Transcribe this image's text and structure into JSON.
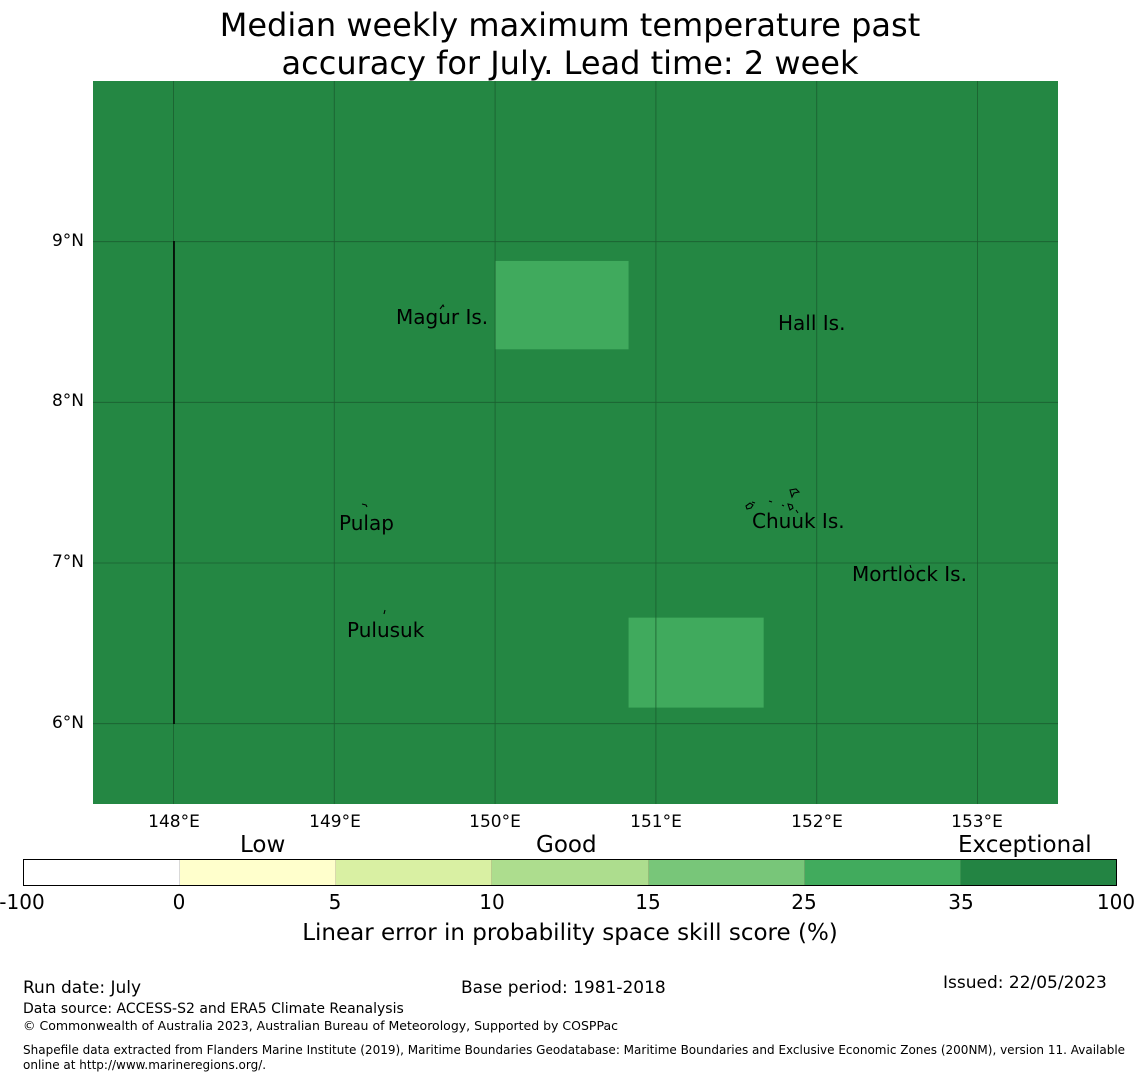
{
  "title": {
    "line1": "Median weekly maximum temperature past",
    "line2": "accuracy for July. Lead time: 2 week"
  },
  "map": {
    "colors": {
      "background": "#248743",
      "highlight": "#40aa5d",
      "grid": "#1a5e2f",
      "coast": "#000000"
    },
    "lon_range": [
      147.5,
      153.5
    ],
    "lat_range": [
      5.5,
      10.0
    ],
    "x_ticks": [
      "148°E",
      "149°E",
      "150°E",
      "151°E",
      "152°E",
      "153°E"
    ],
    "y_ticks": [
      "9°N",
      "8°N",
      "7°N",
      "6°N"
    ],
    "highlight_cells": [
      {
        "lon": [
          150.0,
          150.83
        ],
        "lat": [
          8.33,
          8.88
        ],
        "category": "25 to 35"
      },
      {
        "lon": [
          150.83,
          151.67
        ],
        "lat": [
          6.1,
          6.66
        ],
        "category": "25 to 35"
      }
    ],
    "places": {
      "magur": "Magur Is.",
      "hall": "Hall Is.",
      "pulap": "Pulap",
      "chuuk": "Chuuk Is.",
      "mortlock": "Mortlock Is.",
      "pulusuk": "Pulusuk"
    }
  },
  "colorbar": {
    "categories": {
      "low": "Low",
      "good": "Good",
      "exceptional": "Exceptional"
    },
    "ticks": [
      "-100",
      "0",
      "5",
      "10",
      "15",
      "25",
      "35",
      "100"
    ],
    "colors": [
      "#ffffff",
      "#ffffcc",
      "#d9f0a3",
      "#addd8e",
      "#78c679",
      "#41ab5d",
      "#238443"
    ],
    "label": "Linear error in probability space skill score (%)"
  },
  "footer": {
    "run_date": "Run date: July",
    "base_period": "Base period: 1981-2018",
    "issued": "Issued: 22/05/2023",
    "data_source": "Data source: ACCESS-S2 and ERA5 Climate Reanalysis",
    "copyright": "© Commonwealth of Australia 2023, Australian Bureau of Meteorology, Supported by COSPPac",
    "shapefile_line1": "Shapefile data extracted from Flanders Marine Institute (2019), Maritime Boundaries Geodatabase: Maritime Boundaries and Exclusive Economic Zones (200NM), version 11. Available",
    "shapefile_line2": "online at http://www.marineregions.org/."
  }
}
